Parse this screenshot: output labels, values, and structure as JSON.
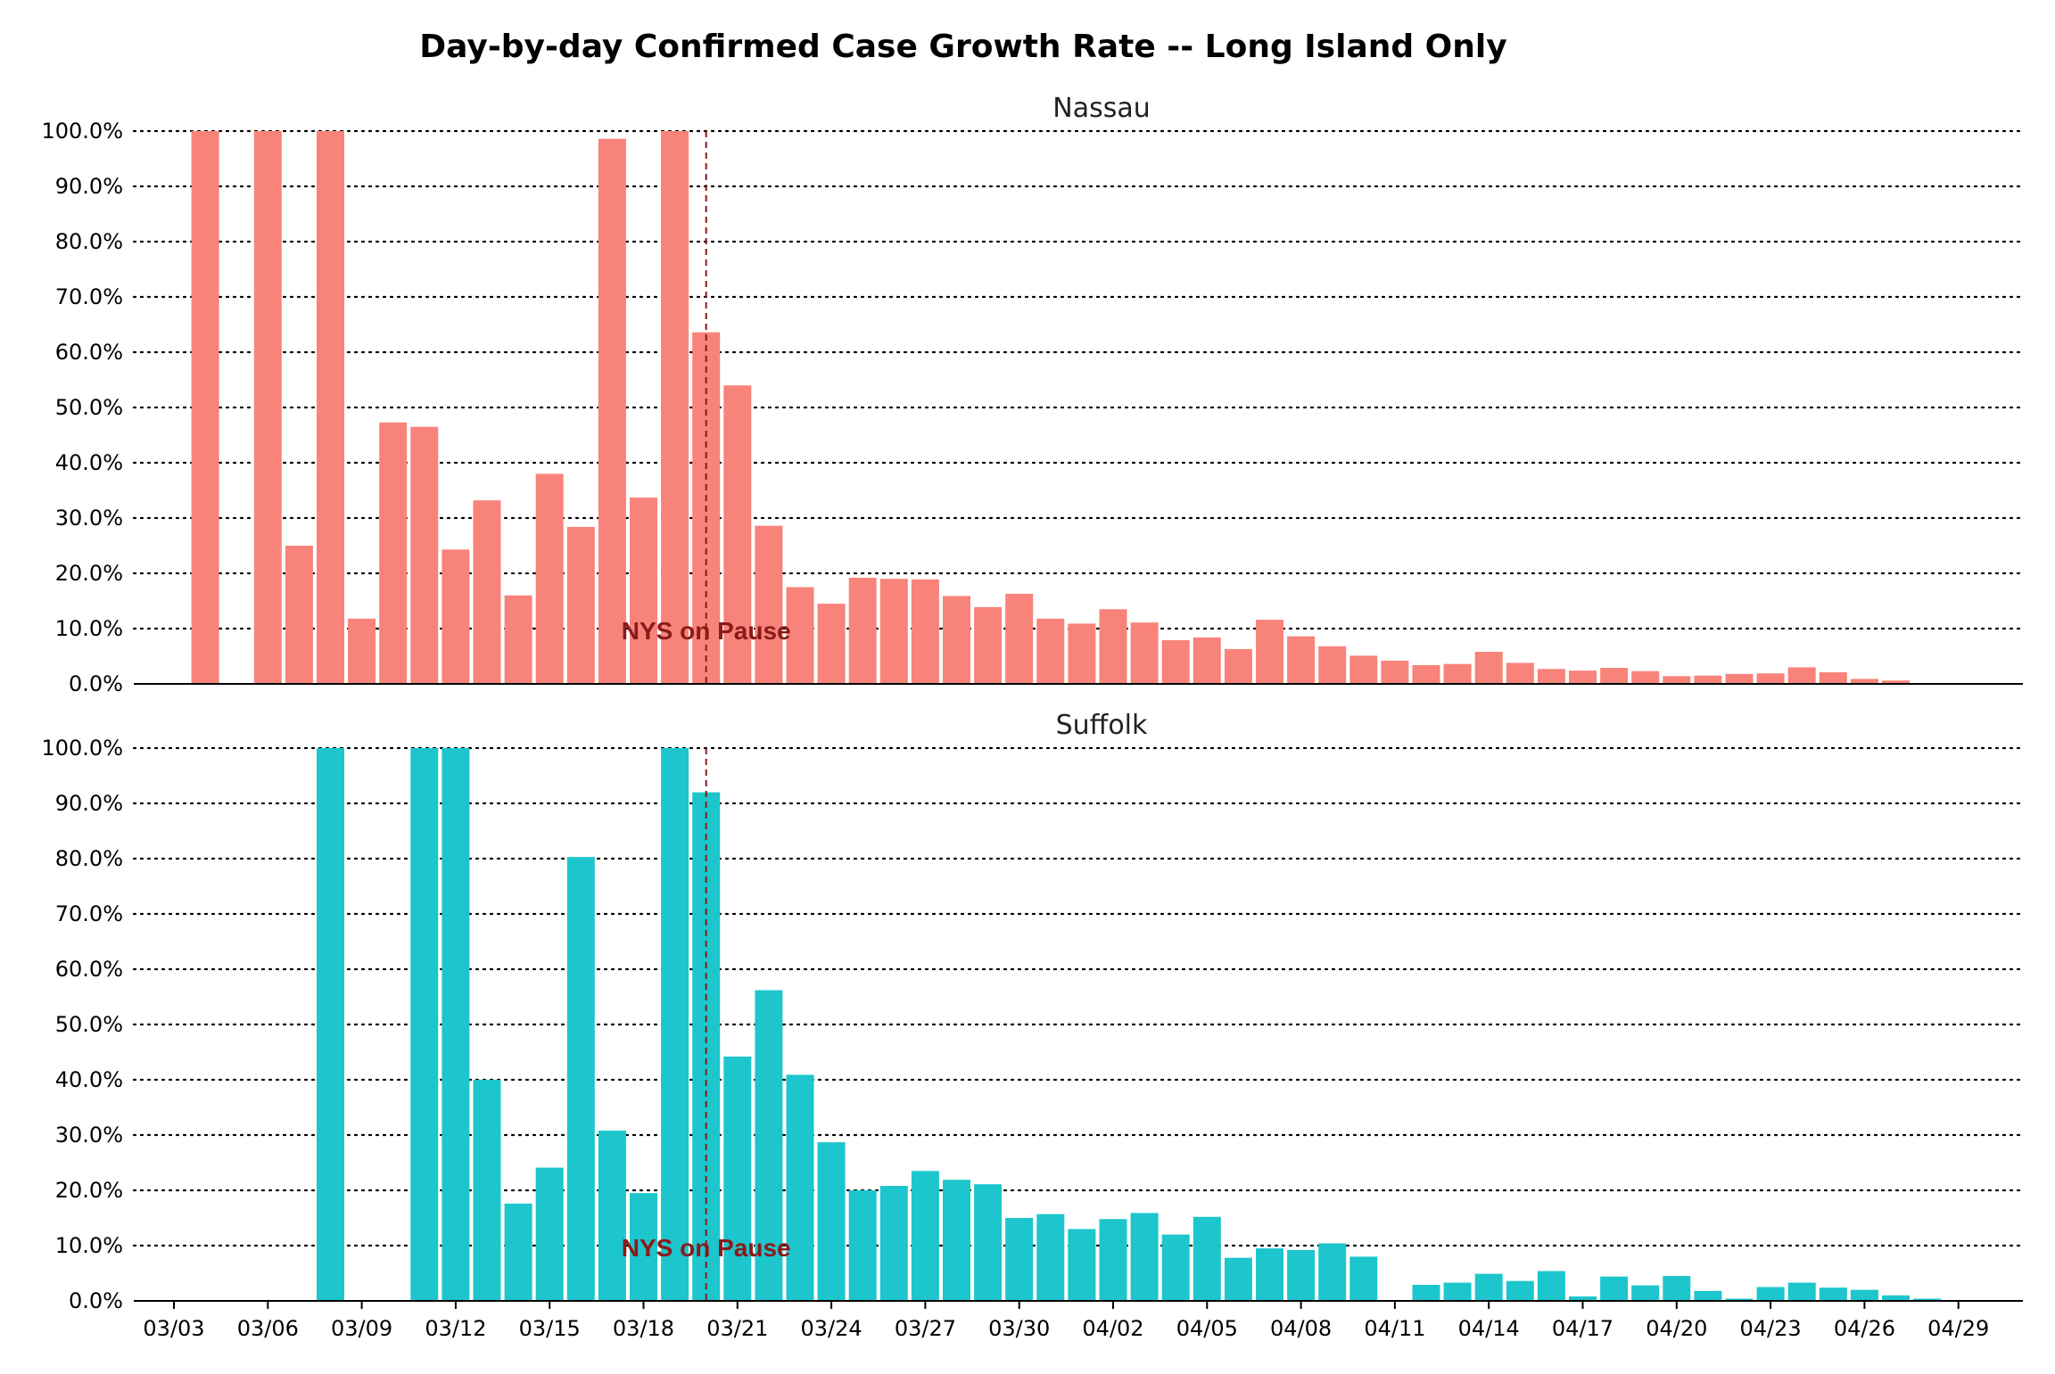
{
  "chart_data": {
    "type": "bar",
    "title": "Day-by-day Confirmed Case Growth Rate -- Long Island Only",
    "x_tick_labels": [
      "03/03",
      "03/06",
      "03/09",
      "03/12",
      "03/15",
      "03/18",
      "03/21",
      "03/24",
      "03/27",
      "03/30",
      "04/02",
      "04/05",
      "04/08",
      "04/11",
      "04/14",
      "04/17",
      "04/20",
      "04/23",
      "04/26",
      "04/29"
    ],
    "y_tick_labels": [
      "0.0%",
      "10.0%",
      "20.0%",
      "30.0%",
      "40.0%",
      "50.0%",
      "60.0%",
      "70.0%",
      "80.0%",
      "90.0%",
      "100.0%"
    ],
    "ylim": [
      0,
      100
    ],
    "grid": "horizontal dotted",
    "annotation": {
      "text": "NYS on Pause",
      "date": "03/20"
    },
    "dates": [
      "03/04",
      "03/05",
      "03/06",
      "03/07",
      "03/08",
      "03/09",
      "03/10",
      "03/11",
      "03/12",
      "03/13",
      "03/14",
      "03/15",
      "03/16",
      "03/17",
      "03/18",
      "03/19",
      "03/20",
      "03/21",
      "03/22",
      "03/23",
      "03/24",
      "03/25",
      "03/26",
      "03/27",
      "03/28",
      "03/29",
      "03/30",
      "03/31",
      "04/01",
      "04/02",
      "04/03",
      "04/04",
      "04/05",
      "04/06",
      "04/07",
      "04/08",
      "04/09",
      "04/10",
      "04/11",
      "04/12",
      "04/13",
      "04/14",
      "04/15",
      "04/16",
      "04/17",
      "04/18",
      "04/19",
      "04/20",
      "04/21",
      "04/22",
      "04/23",
      "04/24",
      "04/25",
      "04/26",
      "04/27",
      "04/28"
    ],
    "panels": [
      {
        "name": "Nassau",
        "color": "#F8837A",
        "values": [
          100,
          0,
          100,
          25.0,
          100,
          11.8,
          47.3,
          46.5,
          24.3,
          33.2,
          16.0,
          38.0,
          28.4,
          98.6,
          33.7,
          100,
          63.6,
          54.0,
          28.6,
          17.5,
          14.5,
          19.2,
          19.0,
          18.9,
          15.9,
          13.9,
          16.3,
          11.8,
          10.9,
          13.5,
          11.1,
          7.9,
          8.4,
          6.3,
          11.6,
          8.6,
          6.8,
          5.1,
          4.2,
          3.4,
          3.6,
          5.8,
          3.8,
          2.7,
          2.4,
          2.9,
          2.3,
          1.4,
          1.5,
          1.8,
          1.9,
          3.0,
          2.1,
          0.9,
          0.6,
          0
        ]
      },
      {
        "name": "Suffolk",
        "color": "#1CC6CC",
        "values": [
          0,
          0,
          0,
          0,
          100,
          0,
          0,
          100,
          100,
          40.0,
          17.6,
          24.1,
          80.3,
          30.8,
          19.5,
          100,
          92.0,
          44.2,
          56.2,
          40.9,
          28.7,
          20.0,
          20.8,
          23.5,
          21.9,
          21.1,
          15.0,
          15.7,
          13.0,
          14.8,
          15.9,
          12.0,
          15.2,
          7.8,
          9.5,
          9.2,
          10.4,
          8.0,
          0,
          2.9,
          3.3,
          4.9,
          3.6,
          5.4,
          0.8,
          4.4,
          2.8,
          4.5,
          1.8,
          0.4,
          2.5,
          3.3,
          2.4,
          2.0,
          1.0,
          0.4
        ]
      }
    ]
  }
}
